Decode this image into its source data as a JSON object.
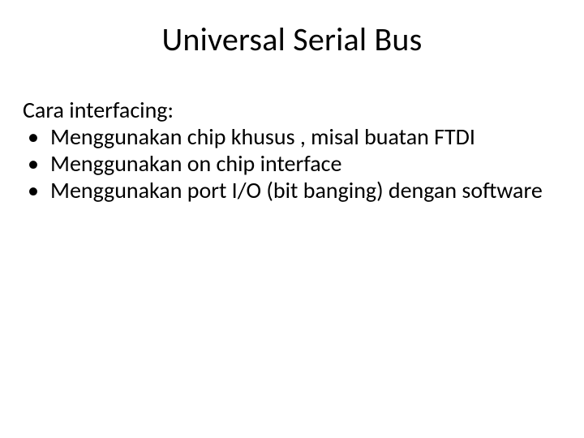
{
  "slide": {
    "title": "Universal Serial Bus",
    "intro": "Cara interfacing:",
    "bullets": [
      "Menggunakan chip khusus , misal buatan FTDI",
      "Menggunakan on chip interface",
      "Menggunakan port I/O (bit banging) dengan software"
    ],
    "colors": {
      "background": "#ffffff",
      "text": "#000000"
    },
    "typography": {
      "title_fontsize": 40,
      "body_fontsize": 28,
      "font_family": "Calibri"
    }
  }
}
